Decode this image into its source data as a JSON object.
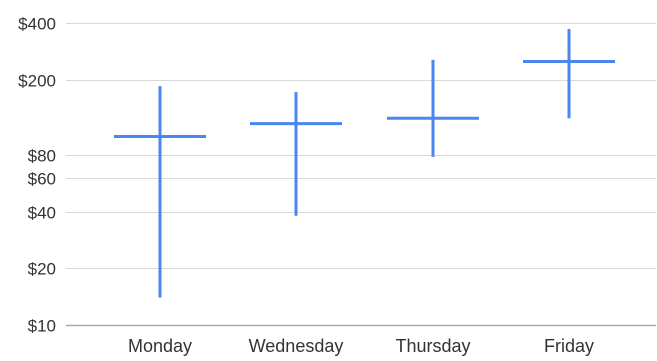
{
  "chart_data": {
    "type": "candlestick",
    "title": "",
    "xlabel": "",
    "ylabel": "",
    "y_scale": "log",
    "ylim": [
      10,
      400
    ],
    "y_ticks": [
      400,
      200,
      80,
      60,
      40,
      20,
      10
    ],
    "y_tick_labels": [
      "$400",
      "$200",
      "$80",
      "$60",
      "$40",
      "$20",
      "$10"
    ],
    "gridlines": true,
    "legend": "none",
    "categories": [
      "Monday",
      "Wednesday",
      "Thursday",
      "Friday"
    ],
    "points": [
      {
        "category": "Monday",
        "low": 14,
        "high": 185,
        "value": 100
      },
      {
        "category": "Wednesday",
        "low": 38,
        "high": 172,
        "value": 117
      },
      {
        "category": "Thursday",
        "low": 78,
        "high": 255,
        "value": 125
      },
      {
        "category": "Friday",
        "low": 125,
        "high": 372,
        "value": 250
      }
    ],
    "series_color": "#4a86f0",
    "grid_color": "#d9d9d9",
    "axis_color": "#aaaaaa"
  }
}
